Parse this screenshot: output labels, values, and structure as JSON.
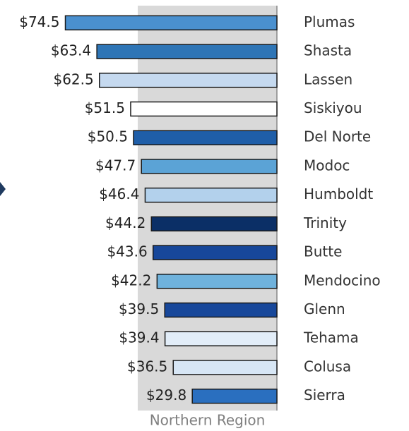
{
  "chart_data": {
    "type": "hbar",
    "categories": [
      "Plumas",
      "Shasta",
      "Lassen",
      "Siskiyou",
      "Del Norte",
      "Modoc",
      "Humboldt",
      "Trinity",
      "Butte",
      "Mendocino",
      "Glenn",
      "Tehama",
      "Colusa",
      "Sierra"
    ],
    "values": [
      74.5,
      63.4,
      62.5,
      51.5,
      50.5,
      47.7,
      46.4,
      44.2,
      43.6,
      42.2,
      39.5,
      39.4,
      36.5,
      29.8
    ],
    "value_labels": [
      "$74.5",
      "$63.4",
      "$62.5",
      "$51.5",
      "$50.5",
      "$47.7",
      "$46.4",
      "$44.2",
      "$43.6",
      "$42.2",
      "$39.5",
      "$39.4",
      "$36.5",
      "$29.8"
    ],
    "colors": [
      "#4a90cf",
      "#2e75b6",
      "#c5d9ef",
      "#ffffff",
      "#1f5ea8",
      "#5ba3d6",
      "#b3d1ec",
      "#0b2f66",
      "#17479a",
      "#6fb2dc",
      "#17479a",
      "#e2edf8",
      "#d7e6f5",
      "#2a6fbf"
    ],
    "xlim": [
      0,
      75
    ],
    "band": {
      "label": "Northern Region",
      "value": 49,
      "color": "#d9d9d9"
    }
  }
}
